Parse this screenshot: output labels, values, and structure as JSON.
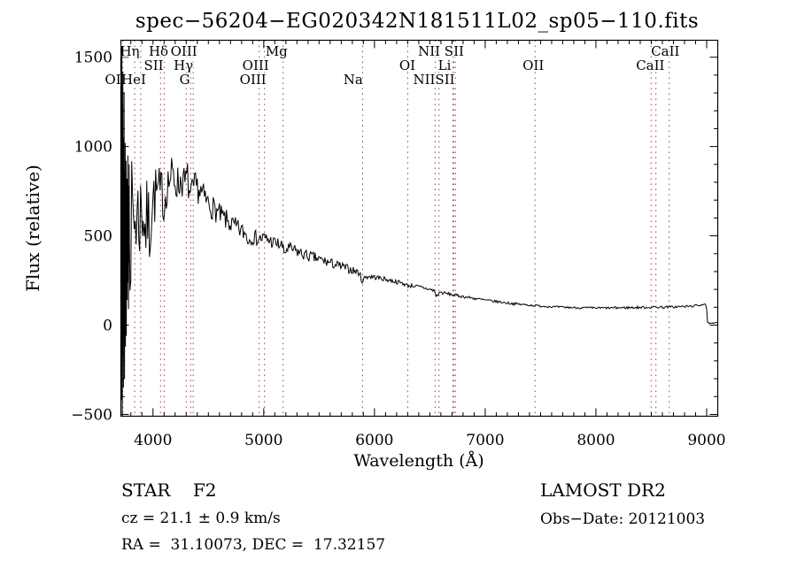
{
  "title": "spec−56204−EG020342N181511L02_sp05−110.fits",
  "annotations": {
    "class_label": "STAR    F2",
    "survey": "LAMOST DR2",
    "cz": "cz = 21.1 ± 0.9 km/s",
    "obs_date": "Obs−Date: 20121003",
    "radec": "RA =  31.10073, DEC =  17.32157"
  },
  "chart_data": {
    "type": "line",
    "title": "spec−56204−EG020342N181511L02_sp05−110.fits",
    "xlabel": "Wavelength (Å)",
    "ylabel": "Flux (relative)",
    "xlim": [
      3710,
      9100
    ],
    "ylim": [
      -510,
      1595
    ],
    "xticks": [
      4000,
      5000,
      6000,
      7000,
      8000,
      9000
    ],
    "yticks": [
      -500,
      0,
      500,
      1000,
      1500
    ],
    "x_minor_step": 100,
    "y_minor_step": 100,
    "grid": false,
    "legend": "none",
    "line_color": "#000000",
    "marker_line_color": "#a04545",
    "spectral_line_wavelengths": [
      3727,
      3835,
      3889,
      4068,
      4101,
      4300,
      4340,
      4363,
      4959,
      5007,
      5175,
      5893,
      6300,
      6548,
      6583,
      6708,
      6716,
      6731,
      7450,
      8498,
      8542,
      8662
    ],
    "line_labels": [
      {
        "text": "Hη",
        "wl": 3790,
        "row": 1
      },
      {
        "text": "Hδ",
        "wl": 4050,
        "row": 1
      },
      {
        "text": "OIII",
        "wl": 4279,
        "row": 1
      },
      {
        "text": "Mg",
        "wl": 5116,
        "row": 1
      },
      {
        "text": "NII SII",
        "wl": 6601,
        "row": 1
      },
      {
        "text": "CaII",
        "wl": 8627,
        "row": 1
      },
      {
        "text": "SII",
        "wl": 4006,
        "row": 2
      },
      {
        "text": "Hγ",
        "wl": 4275,
        "row": 2
      },
      {
        "text": "OIII",
        "wl": 4927,
        "row": 2
      },
      {
        "text": "OI",
        "wl": 6297,
        "row": 2
      },
      {
        "text": "Li",
        "wl": 6633,
        "row": 2
      },
      {
        "text": "OII",
        "wl": 7434,
        "row": 2
      },
      {
        "text": "CaII",
        "wl": 8491,
        "row": 2
      },
      {
        "text": "OII",
        "wl": 3662,
        "row": 3
      },
      {
        "text": "HeI",
        "wl": 3826,
        "row": 3
      },
      {
        "text": "G",
        "wl": 4287,
        "row": 3
      },
      {
        "text": "OIII",
        "wl": 4903,
        "row": 3
      },
      {
        "text": "Na",
        "wl": 5808,
        "row": 3
      },
      {
        "text": "NIISII",
        "wl": 6537,
        "row": 3
      }
    ],
    "noise": {
      "start": 3792,
      "step": 8,
      "seed": 7
    },
    "left_spikes": [
      [
        3710,
        300
      ],
      [
        3711,
        1570
      ],
      [
        3713,
        -150
      ],
      [
        3714,
        1340
      ],
      [
        3716,
        -420
      ],
      [
        3717,
        1100
      ],
      [
        3719,
        1560
      ],
      [
        3720,
        -260
      ],
      [
        3722,
        980
      ],
      [
        3723,
        -520
      ],
      [
        3725,
        1240
      ],
      [
        3727,
        -180
      ],
      [
        3728,
        1420
      ],
      [
        3730,
        60
      ],
      [
        3731,
        900
      ],
      [
        3733,
        -350
      ],
      [
        3735,
        1050
      ],
      [
        3737,
        -80
      ],
      [
        3739,
        1300
      ],
      [
        3741,
        120
      ],
      [
        3743,
        -300
      ],
      [
        3745,
        860
      ],
      [
        3747,
        40
      ],
      [
        3749,
        1020
      ],
      [
        3751,
        -120
      ],
      [
        3753,
        760
      ],
      [
        3755,
        180
      ],
      [
        3757,
        920
      ],
      [
        3759,
        -60
      ],
      [
        3761,
        680
      ],
      [
        3763,
        320
      ],
      [
        3765,
        820
      ],
      [
        3767,
        140
      ],
      [
        3769,
        740
      ],
      [
        3771,
        420
      ],
      [
        3773,
        950
      ],
      [
        3775,
        240
      ],
      [
        3777,
        640
      ],
      [
        3779,
        90
      ],
      [
        3781,
        780
      ],
      [
        3783,
        350
      ],
      [
        3785,
        900
      ],
      [
        3787,
        480
      ]
    ],
    "continuum": [
      [
        3790,
        560,
        380
      ],
      [
        3820,
        590,
        340
      ],
      [
        3850,
        610,
        300
      ],
      [
        3880,
        620,
        300
      ],
      [
        3910,
        660,
        240
      ],
      [
        3933,
        520,
        260
      ],
      [
        3950,
        610,
        230
      ],
      [
        3968,
        530,
        240
      ],
      [
        3990,
        690,
        190
      ],
      [
        4020,
        730,
        170
      ],
      [
        4050,
        740,
        160
      ],
      [
        4068,
        710,
        160
      ],
      [
        4085,
        770,
        140
      ],
      [
        4101,
        640,
        150
      ],
      [
        4115,
        770,
        130
      ],
      [
        4140,
        800,
        120
      ],
      [
        4170,
        840,
        110
      ],
      [
        4200,
        810,
        110
      ],
      [
        4230,
        790,
        105
      ],
      [
        4260,
        815,
        100
      ],
      [
        4290,
        790,
        95
      ],
      [
        4310,
        835,
        95
      ],
      [
        4340,
        690,
        105
      ],
      [
        4365,
        760,
        90
      ],
      [
        4390,
        775,
        85
      ],
      [
        4430,
        745,
        80
      ],
      [
        4470,
        705,
        75
      ],
      [
        4510,
        675,
        70
      ],
      [
        4560,
        645,
        68
      ],
      [
        4610,
        612,
        62
      ],
      [
        4660,
        588,
        60
      ],
      [
        4710,
        562,
        58
      ],
      [
        4760,
        542,
        55
      ],
      [
        4810,
        522,
        52
      ],
      [
        4850,
        505,
        48
      ],
      [
        4861,
        455,
        42
      ],
      [
        4880,
        498,
        46
      ],
      [
        4920,
        490,
        44
      ],
      [
        4960,
        483,
        44
      ],
      [
        5000,
        487,
        42
      ],
      [
        5040,
        478,
        40
      ],
      [
        5090,
        462,
        40
      ],
      [
        5140,
        450,
        38
      ],
      [
        5165,
        448,
        36
      ],
      [
        5183,
        402,
        34
      ],
      [
        5215,
        430,
        36
      ],
      [
        5260,
        422,
        36
      ],
      [
        5310,
        410,
        35
      ],
      [
        5360,
        396,
        34
      ],
      [
        5410,
        385,
        33
      ],
      [
        5460,
        376,
        32
      ],
      [
        5510,
        366,
        31
      ],
      [
        5560,
        356,
        30
      ],
      [
        5610,
        346,
        28
      ],
      [
        5660,
        336,
        27
      ],
      [
        5710,
        326,
        26
      ],
      [
        5760,
        316,
        24
      ],
      [
        5810,
        306,
        22
      ],
      [
        5860,
        294,
        20
      ],
      [
        5893,
        242,
        16
      ],
      [
        5915,
        272,
        16
      ],
      [
        5960,
        272,
        15
      ],
      [
        6010,
        268,
        14
      ],
      [
        6060,
        262,
        13
      ],
      [
        6110,
        255,
        13
      ],
      [
        6160,
        248,
        12
      ],
      [
        6210,
        241,
        12
      ],
      [
        6260,
        233,
        12
      ],
      [
        6300,
        222,
        12
      ],
      [
        6360,
        220,
        11
      ],
      [
        6420,
        212,
        10
      ],
      [
        6480,
        203,
        10
      ],
      [
        6540,
        193,
        10
      ],
      [
        6563,
        158,
        9
      ],
      [
        6585,
        184,
        9
      ],
      [
        6640,
        178,
        9
      ],
      [
        6700,
        171,
        9
      ],
      [
        6760,
        164,
        8
      ],
      [
        6820,
        158,
        8
      ],
      [
        6900,
        150,
        8
      ],
      [
        7000,
        140,
        7
      ],
      [
        7100,
        132,
        7
      ],
      [
        7200,
        124,
        7
      ],
      [
        7300,
        117,
        7
      ],
      [
        7400,
        112,
        6
      ],
      [
        7500,
        107,
        6
      ],
      [
        7600,
        103,
        6
      ],
      [
        7700,
        100,
        6
      ],
      [
        7800,
        98,
        6
      ],
      [
        7900,
        97,
        6
      ],
      [
        8000,
        96,
        6
      ],
      [
        8100,
        96,
        6
      ],
      [
        8200,
        97,
        7
      ],
      [
        8300,
        98,
        7
      ],
      [
        8400,
        99,
        7
      ],
      [
        8500,
        100,
        7
      ],
      [
        8600,
        101,
        7
      ],
      [
        8700,
        102,
        7
      ],
      [
        8800,
        104,
        7
      ],
      [
        8880,
        107,
        6
      ],
      [
        8940,
        112,
        6
      ],
      [
        8980,
        120,
        5
      ],
      [
        8998,
        112,
        4
      ],
      [
        9006,
        14,
        3
      ],
      [
        9030,
        9,
        3
      ],
      [
        9060,
        10,
        3
      ],
      [
        9096,
        14,
        3
      ]
    ]
  }
}
